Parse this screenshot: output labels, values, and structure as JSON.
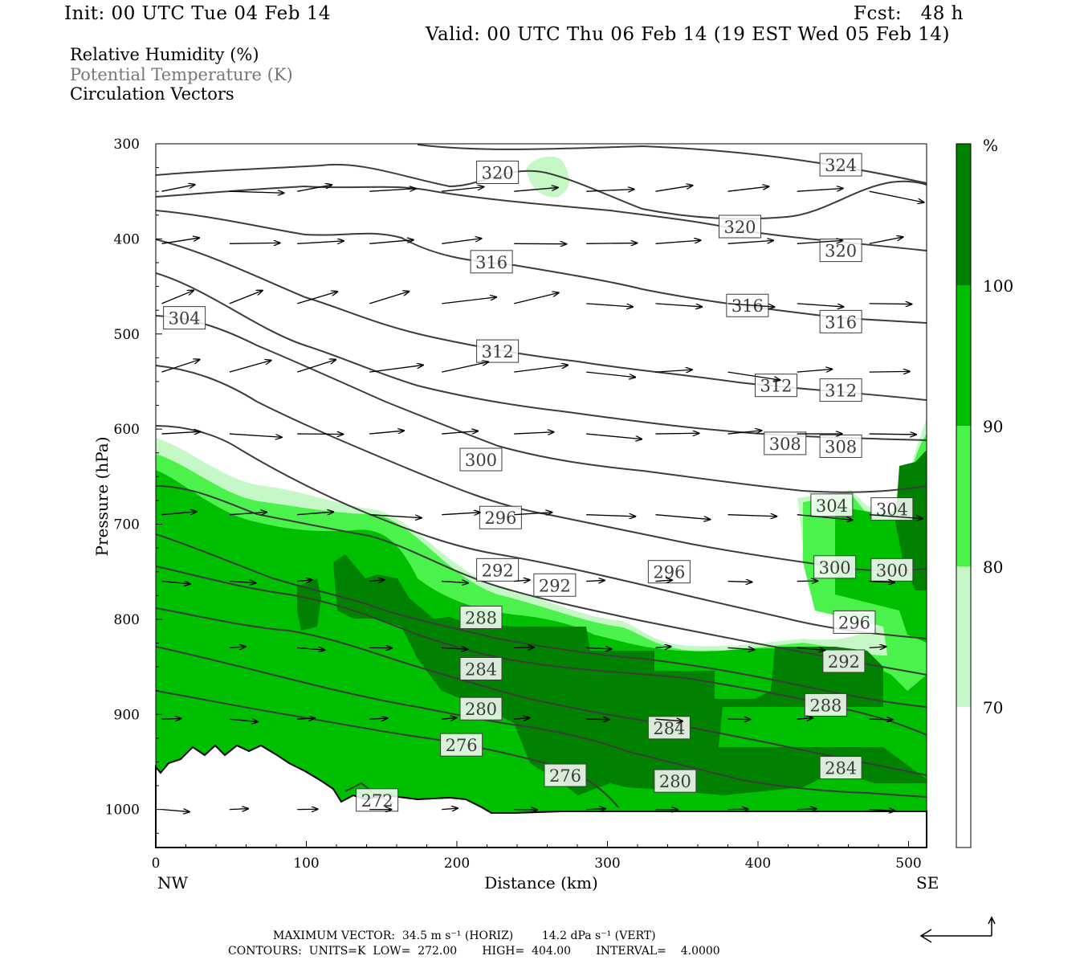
{
  "header": {
    "init": "Init: 00 UTC Tue 04 Feb 14",
    "fcst": "Fcst:   48 h",
    "valid": "Valid: 00 UTC Thu 06 Feb 14 (19 EST Wed 05 Feb 14)"
  },
  "legend": {
    "rh": "Relative Humidity (%)",
    "theta": "Potential Temperature (K)",
    "vectors": "Circulation Vectors"
  },
  "footer": {
    "max_vector": "MAXIMUM VECTOR:  34.5 m s⁻¹ (HORIZ)        14.2 dPa s⁻¹ (VERT)",
    "contours": "CONTOURS:  UNITS=K  LOW=  272.00       HIGH=  404.00       INTERVAL=    4.0000"
  },
  "colors": {
    "rh_70": "#c6f7c6",
    "rh_80": "#4cf24c",
    "rh_90": "#00be00",
    "rh_100": "#008200",
    "contour": "#3c3c3c",
    "vector": "#000000"
  },
  "chart_data": {
    "type": "cross-section",
    "xlabel": "Distance (km)",
    "ylabel": "Pressure (hPa)",
    "xlim": [
      0,
      512
    ],
    "ylim": [
      1040,
      300
    ],
    "x_ticks": [
      "0",
      "100",
      "200",
      "300",
      "400",
      "500"
    ],
    "y_ticks": [
      "300",
      "400",
      "500",
      "600",
      "700",
      "800",
      "900",
      "1000"
    ],
    "x_ends": {
      "left": "NW",
      "right": "SE"
    },
    "colorbar": {
      "unit": "%",
      "levels": [
        "70",
        "80",
        "90",
        "100"
      ]
    },
    "theta_labels": [
      {
        "text": "324",
        "x": 455,
        "p": 322
      },
      {
        "text": "320",
        "x": 227,
        "p": 330
      },
      {
        "text": "320",
        "x": 388,
        "p": 387
      },
      {
        "text": "320",
        "x": 455,
        "p": 412
      },
      {
        "text": "316",
        "x": 223,
        "p": 424
      },
      {
        "text": "316",
        "x": 393,
        "p": 470
      },
      {
        "text": "316",
        "x": 455,
        "p": 487
      },
      {
        "text": "312",
        "x": 227,
        "p": 518
      },
      {
        "text": "312",
        "x": 412,
        "p": 554
      },
      {
        "text": "312",
        "x": 455,
        "p": 559
      },
      {
        "text": "308",
        "x": 418,
        "p": 615
      },
      {
        "text": "308",
        "x": 455,
        "p": 618
      },
      {
        "text": "304",
        "x": 19,
        "p": 483
      },
      {
        "text": "304",
        "x": 449,
        "p": 680
      },
      {
        "text": "304",
        "x": 489,
        "p": 684
      },
      {
        "text": "300",
        "x": 216,
        "p": 632
      },
      {
        "text": "300",
        "x": 451,
        "p": 745
      },
      {
        "text": "300",
        "x": 489,
        "p": 748
      },
      {
        "text": "296",
        "x": 229,
        "p": 693
      },
      {
        "text": "296",
        "x": 341,
        "p": 750
      },
      {
        "text": "296",
        "x": 464,
        "p": 803
      },
      {
        "text": "292",
        "x": 227,
        "p": 748
      },
      {
        "text": "292",
        "x": 265,
        "p": 764
      },
      {
        "text": "292",
        "x": 457,
        "p": 844
      },
      {
        "text": "288",
        "x": 216,
        "p": 798
      },
      {
        "text": "288",
        "x": 445,
        "p": 890
      },
      {
        "text": "284",
        "x": 216,
        "p": 852
      },
      {
        "text": "284",
        "x": 341,
        "p": 914
      },
      {
        "text": "284",
        "x": 455,
        "p": 956
      },
      {
        "text": "280",
        "x": 216,
        "p": 894
      },
      {
        "text": "280",
        "x": 345,
        "p": 970
      },
      {
        "text": "276",
        "x": 203,
        "p": 932
      },
      {
        "text": "276",
        "x": 272,
        "p": 964
      },
      {
        "text": "272",
        "x": 147,
        "p": 990
      }
    ]
  }
}
